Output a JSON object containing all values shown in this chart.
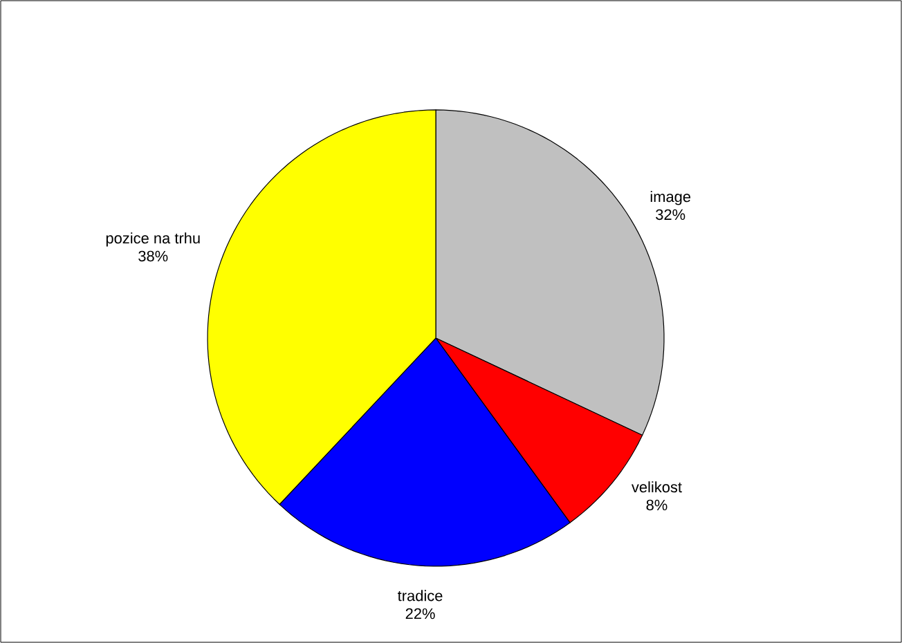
{
  "chart_data": {
    "type": "pie",
    "categories": [
      "image",
      "velikost",
      "tradice",
      "pozice na trhu"
    ],
    "values": [
      32,
      8,
      22,
      38
    ],
    "value_labels": [
      "32%",
      "8%",
      "22%",
      "38%"
    ],
    "colors": [
      "#c0c0c0",
      "#ff0000",
      "#0000ff",
      "#ffff00"
    ]
  }
}
